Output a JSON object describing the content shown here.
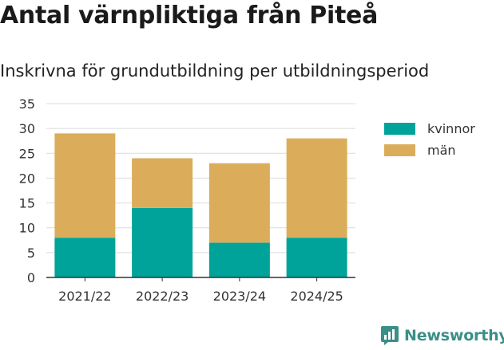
{
  "title": "Antal värnpliktiga från Piteå",
  "subtitle": "Inskrivna för grundutbildning per utbildningsperiod",
  "colors": {
    "kvinnor": "#00a39a",
    "man": "#dbad5a",
    "brand": "#3a8f87"
  },
  "brand": {
    "name": "Newsworthy",
    "icon": "chart-logo-icon"
  },
  "chart_data": {
    "type": "bar",
    "stacked": true,
    "categories": [
      "2021/22",
      "2022/23",
      "2023/24",
      "2024/25"
    ],
    "series": [
      {
        "name": "kvinnor",
        "values": [
          8,
          14,
          7,
          8
        ]
      },
      {
        "name": "män",
        "values": [
          21,
          10,
          16,
          20
        ]
      }
    ],
    "ylim": [
      0,
      35
    ],
    "yticks": [
      0,
      5,
      10,
      15,
      20,
      25,
      30,
      35
    ],
    "grid": true,
    "legend": "right"
  }
}
